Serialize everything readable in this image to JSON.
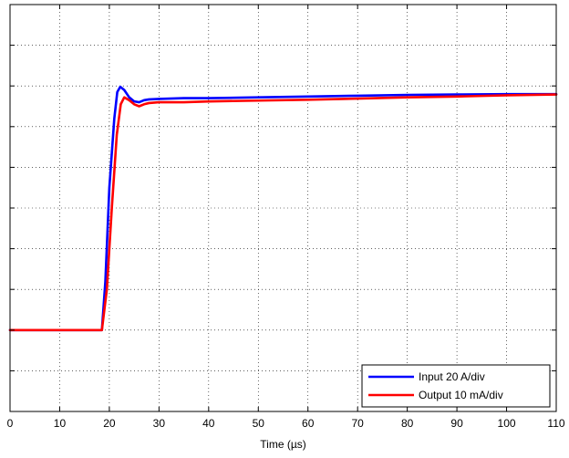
{
  "chart_data": {
    "type": "line",
    "title": "",
    "xlabel": "Time (µs)",
    "ylabel": "",
    "xlim": [
      0,
      110
    ],
    "ylim": [
      0,
      10
    ],
    "xticks": [
      0,
      10,
      20,
      30,
      40,
      50,
      60,
      70,
      80,
      90,
      100,
      110
    ],
    "yticks": [
      0,
      1,
      2,
      3,
      4,
      5,
      6,
      7,
      8,
      9,
      10
    ],
    "y_tick_labels_visible": false,
    "grid": true,
    "legend_position": "bottom-right",
    "series": [
      {
        "name": "Input 20 A/div",
        "color": "#0000ff",
        "x": [
          0,
          18.5,
          19.2,
          20.0,
          21.0,
          21.6,
          22.2,
          23.0,
          24.0,
          25.0,
          26.0,
          27.0,
          28.0,
          30.0,
          35.0,
          40.0,
          50.0,
          60.0,
          70.0,
          80.0,
          90.0,
          100.0,
          110.0
        ],
        "y": [
          2.0,
          2.0,
          3.2,
          5.5,
          7.2,
          7.85,
          7.98,
          7.9,
          7.72,
          7.62,
          7.6,
          7.65,
          7.67,
          7.68,
          7.7,
          7.7,
          7.72,
          7.74,
          7.76,
          7.78,
          7.79,
          7.8,
          7.8
        ]
      },
      {
        "name": "Output 10 mA/div",
        "color": "#ff0000",
        "x": [
          0,
          18.5,
          19.5,
          20.5,
          21.5,
          22.3,
          23.0,
          24.0,
          25.0,
          26.0,
          27.0,
          28.0,
          30.0,
          35.0,
          40.0,
          50.0,
          60.0,
          70.0,
          80.0,
          90.0,
          100.0,
          110.0
        ],
        "y": [
          2.0,
          2.0,
          3.0,
          5.0,
          6.8,
          7.55,
          7.72,
          7.65,
          7.55,
          7.5,
          7.55,
          7.58,
          7.6,
          7.6,
          7.62,
          7.64,
          7.66,
          7.69,
          7.72,
          7.74,
          7.77,
          7.79
        ]
      }
    ]
  }
}
